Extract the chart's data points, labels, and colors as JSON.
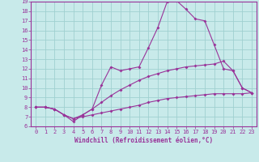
{
  "xlabel": "Windchill (Refroidissement éolien,°C)",
  "ylabel": "",
  "xlim": [
    -0.5,
    23.5
  ],
  "ylim": [
    6,
    19
  ],
  "xticks": [
    0,
    1,
    2,
    3,
    4,
    5,
    6,
    7,
    8,
    9,
    10,
    11,
    12,
    13,
    14,
    15,
    16,
    17,
    18,
    19,
    20,
    21,
    22,
    23
  ],
  "yticks": [
    6,
    7,
    8,
    9,
    10,
    11,
    12,
    13,
    14,
    15,
    16,
    17,
    18,
    19
  ],
  "bg_color": "#c8eaea",
  "line_color": "#993399",
  "grid_color": "#a0d0d0",
  "lines": [
    {
      "x": [
        0,
        1,
        2,
        3,
        4,
        5,
        6,
        7,
        8,
        9,
        10,
        11,
        12,
        13,
        14,
        15,
        16,
        17,
        18,
        19,
        20,
        21,
        22,
        23
      ],
      "y": [
        8.0,
        8.0,
        7.8,
        7.2,
        6.8,
        7.0,
        7.2,
        7.4,
        7.6,
        7.8,
        8.0,
        8.2,
        8.5,
        8.7,
        8.9,
        9.0,
        9.1,
        9.2,
        9.3,
        9.4,
        9.4,
        9.4,
        9.4,
        9.5
      ]
    },
    {
      "x": [
        0,
        1,
        2,
        3,
        4,
        5,
        6,
        7,
        8,
        9,
        10,
        11,
        12,
        13,
        14,
        15,
        16,
        17,
        18,
        19,
        20,
        21,
        22,
        23
      ],
      "y": [
        8.0,
        8.0,
        7.8,
        7.2,
        6.8,
        7.2,
        7.8,
        8.5,
        9.2,
        9.8,
        10.3,
        10.8,
        11.2,
        11.5,
        11.8,
        12.0,
        12.2,
        12.3,
        12.4,
        12.5,
        12.8,
        11.8,
        10.0,
        9.5
      ]
    },
    {
      "x": [
        0,
        1,
        2,
        3,
        4,
        5,
        6,
        7,
        8,
        9,
        10,
        11,
        12,
        13,
        14,
        15,
        16,
        17,
        18,
        19,
        20,
        21,
        22,
        23
      ],
      "y": [
        8.0,
        8.0,
        7.8,
        7.2,
        6.5,
        7.2,
        7.8,
        10.3,
        12.2,
        11.8,
        12.0,
        12.2,
        14.2,
        16.3,
        19.0,
        19.1,
        18.2,
        17.2,
        17.0,
        14.5,
        12.0,
        11.8,
        10.0,
        9.5
      ]
    }
  ]
}
